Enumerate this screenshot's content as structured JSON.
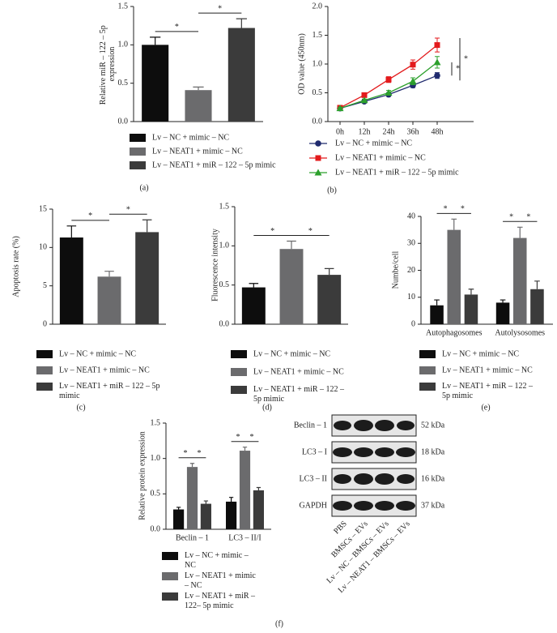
{
  "chart_data": [
    {
      "type": "bar",
      "panel_label": "(a)",
      "y_label": "Relative miR – 122 – 5p expression",
      "ylim": [
        0,
        1.5
      ],
      "yticks": [
        {
          "value": 0,
          "label": "0.0"
        },
        0.5,
        {
          "value": 1,
          "label": "1.0"
        },
        1.5
      ],
      "series": [
        {
          "name": "Lv – NC + mimic – NC",
          "color": "#0d0d0d",
          "values": [
            1.0
          ],
          "errors": [
            0.1
          ]
        },
        {
          "name": "Lv – NEAT1 + mimic – NC",
          "color": "#6b6b6d",
          "values": [
            0.41
          ],
          "errors": [
            0.04
          ]
        },
        {
          "name": "Lv – NEAT1 + miR – 122 – 5p mimic",
          "color": "#3b3b3b",
          "values": [
            1.22
          ],
          "errors": [
            0.12
          ]
        }
      ],
      "significance": [
        {
          "group": 0,
          "from": 0,
          "to": 1,
          "label": "*"
        },
        {
          "group": 0,
          "from": 1,
          "to": 2,
          "label": "*"
        }
      ]
    },
    {
      "type": "line",
      "panel_label": "(b)",
      "y_label": "OD value (450nm)",
      "categories": [
        "0h",
        "12h",
        "24h",
        "36h",
        "48h"
      ],
      "ylim": [
        0,
        2
      ],
      "yticks": [
        {
          "value": 0,
          "label": "0.0"
        },
        0.5,
        {
          "value": 1,
          "label": "1.0"
        },
        1.5,
        {
          "value": 2,
          "label": "2.0"
        }
      ],
      "series": [
        {
          "name": "Lv – NC + mimic – NC",
          "color": "#1f2a6e",
          "marker": "circle",
          "values": [
            0.23,
            0.35,
            0.47,
            0.63,
            0.8
          ],
          "errors": [
            0.02,
            0.02,
            0.03,
            0.04,
            0.05
          ]
        },
        {
          "name": "Lv – NEAT1 + mimic – NC",
          "color": "#e31a1c",
          "marker": "square",
          "values": [
            0.24,
            0.46,
            0.73,
            0.99,
            1.33
          ],
          "errors": [
            0.02,
            0.03,
            0.05,
            0.08,
            0.12
          ]
        },
        {
          "name": "Lv – NEAT1 + miR – 122 – 5p mimic",
          "color": "#2ca02c",
          "marker": "triangle",
          "values": [
            0.23,
            0.37,
            0.5,
            0.7,
            1.03
          ],
          "errors": [
            0.02,
            0.02,
            0.04,
            0.06,
            0.1
          ]
        }
      ],
      "significance": [
        {
          "label": "*"
        },
        {
          "label": "*"
        }
      ]
    },
    {
      "type": "bar",
      "panel_label": "(c)",
      "y_label": "Apoptosis rate (%)",
      "ylim": [
        0,
        15
      ],
      "yticks": [
        0,
        5,
        10,
        15
      ],
      "series": [
        {
          "name": "Lv – NC + mimic – NC",
          "color": "#0d0d0d",
          "values": [
            11.3
          ],
          "errors": [
            1.5
          ]
        },
        {
          "name": "Lv – NEAT1 + mimic – NC",
          "color": "#6b6b6d",
          "values": [
            6.2
          ],
          "errors": [
            0.7
          ]
        },
        {
          "name": "Lv – NEAT1 + miR – 122 – 5p mimic",
          "color": "#3b3b3b",
          "values": [
            12.0
          ],
          "errors": [
            1.6
          ]
        }
      ],
      "significance": [
        {
          "group": 0,
          "from": 0,
          "to": 1,
          "label": "*"
        },
        {
          "group": 0,
          "from": 1,
          "to": 2,
          "label": "*"
        }
      ]
    },
    {
      "type": "bar",
      "panel_label": "(d)",
      "y_label": "Fluorescence intensity",
      "ylim": [
        0,
        1.5
      ],
      "yticks": [
        {
          "value": 0,
          "label": "0.0"
        },
        0.5,
        {
          "value": 1,
          "label": "1.0"
        },
        1.5
      ],
      "series": [
        {
          "name": "Lv – NC + mimic – NC",
          "color": "#0d0d0d",
          "values": [
            0.47
          ],
          "errors": [
            0.05
          ]
        },
        {
          "name": "Lv – NEAT1 + mimic – NC",
          "color": "#6b6b6d",
          "values": [
            0.96
          ],
          "errors": [
            0.1
          ]
        },
        {
          "name": "Lv – NEAT1 + miR – 122 – 5p mimic",
          "color": "#3b3b3b",
          "values": [
            0.63
          ],
          "errors": [
            0.08
          ]
        }
      ],
      "significance": [
        {
          "group": 0,
          "from": 0,
          "to": 1,
          "label": "*"
        },
        {
          "group": 0,
          "from": 1,
          "to": 2,
          "label": "*"
        }
      ]
    },
    {
      "type": "bar",
      "panel_label": "(e)",
      "y_label": "Numbe/cell",
      "categories": [
        "Autophagosomes",
        "Autolysosomes"
      ],
      "ylim": [
        0,
        40
      ],
      "yticks": [
        0,
        10,
        20,
        30,
        40
      ],
      "series": [
        {
          "name": "Lv – NC + mimic – NC",
          "color": "#0d0d0d",
          "values": [
            7,
            8
          ],
          "errors": [
            2,
            1
          ]
        },
        {
          "name": "Lv – NEAT1 + mimic – NC",
          "color": "#6b6b6d",
          "values": [
            35,
            32
          ],
          "errors": [
            4,
            4
          ]
        },
        {
          "name": "Lv – NEAT1 + miR – 122 – 5p mimic",
          "color": "#3b3b3b",
          "values": [
            11,
            13
          ],
          "errors": [
            2,
            3
          ]
        }
      ],
      "significance": [
        {
          "group": 0,
          "from": 0,
          "to": 1,
          "label": "*"
        },
        {
          "group": 0,
          "from": 1,
          "to": 2,
          "label": "*"
        },
        {
          "group": 1,
          "from": 0,
          "to": 1,
          "label": "*"
        },
        {
          "group": 1,
          "from": 1,
          "to": 2,
          "label": "*"
        }
      ]
    },
    {
      "type": "bar",
      "panel_label": "(f)",
      "y_label": "Relative protein expression",
      "categories": [
        "Beclin – 1",
        "LC3 – II/I"
      ],
      "ylim": [
        0,
        1.5
      ],
      "yticks": [
        {
          "value": 0,
          "label": "0.0"
        },
        0.5,
        {
          "value": 1,
          "label": "1.0"
        },
        1.5
      ],
      "series": [
        {
          "name": "Lv – NC + mimic – NC",
          "color": "#0d0d0d",
          "values": [
            0.28,
            0.39
          ],
          "errors": [
            0.03,
            0.06
          ]
        },
        {
          "name": "Lv – NEAT1 + mimic – NC",
          "color": "#6b6b6d",
          "values": [
            0.88,
            1.11
          ],
          "errors": [
            0.05,
            0.05
          ]
        },
        {
          "name": "Lv – NEAT1 + miR – 122– 5p mimic",
          "color": "#3b3b3b",
          "values": [
            0.36,
            0.55
          ],
          "errors": [
            0.04,
            0.04
          ]
        }
      ],
      "significance": [
        {
          "group": 0,
          "from": 0,
          "to": 1,
          "label": "*"
        },
        {
          "group": 0,
          "from": 1,
          "to": 2,
          "label": "*"
        },
        {
          "group": 1,
          "from": 0,
          "to": 1,
          "label": "*"
        },
        {
          "group": 1,
          "from": 1,
          "to": 2,
          "label": "*"
        }
      ]
    }
  ],
  "blot": {
    "proteins": [
      "Beclin – 1",
      "LC3 – I",
      "LC3 – II",
      "GAPDH"
    ],
    "sizes": [
      "52 kDa",
      "18 kDa",
      "16 kDa",
      "37 kDa"
    ],
    "lanes": [
      "PBS",
      "BMSCs – EVs",
      "Lv – NC – BMSCs – EVs",
      "Lv – NEAT1 – BMSCs – EVs"
    ]
  }
}
